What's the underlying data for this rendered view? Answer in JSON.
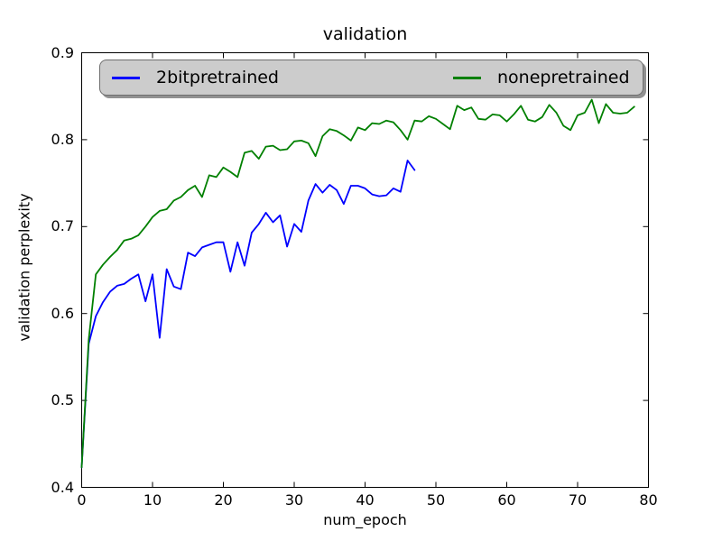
{
  "title": "validation",
  "xlabel": "num_epoch",
  "ylabel": "validation perplexity",
  "legend": {
    "position": "upper center",
    "columns": 2,
    "entries": [
      {
        "label": "2bitpretrained",
        "color": "#0000ff"
      },
      {
        "label": "nonepretrained",
        "color": "#008000"
      }
    ]
  },
  "axes": {
    "xticks": [
      "0",
      "10",
      "20",
      "30",
      "40",
      "50",
      "60",
      "70",
      "80"
    ],
    "yticks": [
      "0.4",
      "0.5",
      "0.6",
      "0.7",
      "0.8",
      "0.9"
    ]
  },
  "colors": {
    "background": "#ffffff",
    "axes_frame": "#000000",
    "legend_fill": "#cccccc",
    "legend_shadow": "#919191",
    "series_blue": "#0000ff",
    "series_green": "#008000"
  },
  "chart_data": {
    "type": "line",
    "title": "validation",
    "xlabel": "num_epoch",
    "ylabel": "validation perplexity",
    "xlim": [
      0,
      80
    ],
    "ylim": [
      0.4,
      0.9
    ],
    "grid": false,
    "legend_position": "upper center, 2 columns, gray box with shadow",
    "series": [
      {
        "name": "2bitpretrained",
        "color": "#0000ff",
        "x": [
          0,
          1,
          2,
          3,
          4,
          5,
          6,
          7,
          8,
          9,
          10,
          11,
          12,
          13,
          14,
          15,
          16,
          17,
          18,
          19,
          20,
          21,
          22,
          23,
          24,
          25,
          26,
          27,
          28,
          29,
          30,
          31,
          32,
          33,
          34,
          35,
          36,
          37,
          38,
          39,
          40,
          41,
          42,
          43,
          44,
          45,
          46,
          47
        ],
        "y": [
          0.423,
          0.565,
          0.597,
          0.613,
          0.625,
          0.632,
          0.634,
          0.64,
          0.645,
          0.614,
          0.645,
          0.572,
          0.651,
          0.631,
          0.628,
          0.67,
          0.666,
          0.676,
          0.679,
          0.682,
          0.682,
          0.648,
          0.682,
          0.655,
          0.693,
          0.703,
          0.716,
          0.705,
          0.713,
          0.677,
          0.703,
          0.694,
          0.73,
          0.749,
          0.739,
          0.748,
          0.742,
          0.726,
          0.747,
          0.747,
          0.744,
          0.737,
          0.735,
          0.736,
          0.744,
          0.74,
          0.776,
          0.765
        ]
      },
      {
        "name": "nonepretrained",
        "color": "#008000",
        "x": [
          0,
          1,
          2,
          3,
          4,
          5,
          6,
          7,
          8,
          9,
          10,
          11,
          12,
          13,
          14,
          15,
          16,
          17,
          18,
          19,
          20,
          21,
          22,
          23,
          24,
          25,
          26,
          27,
          28,
          29,
          30,
          31,
          32,
          33,
          34,
          35,
          36,
          37,
          38,
          39,
          40,
          41,
          42,
          43,
          44,
          45,
          46,
          47,
          48,
          49,
          50,
          51,
          52,
          53,
          54,
          55,
          56,
          57,
          58,
          59,
          60,
          61,
          62,
          63,
          64,
          65,
          66,
          67,
          68,
          69,
          70,
          71,
          72,
          73,
          74,
          75,
          76,
          77,
          78
        ],
        "y": [
          0.423,
          0.57,
          0.645,
          0.656,
          0.665,
          0.673,
          0.684,
          0.686,
          0.69,
          0.7,
          0.711,
          0.718,
          0.72,
          0.73,
          0.734,
          0.742,
          0.747,
          0.734,
          0.759,
          0.757,
          0.768,
          0.763,
          0.757,
          0.785,
          0.787,
          0.778,
          0.792,
          0.793,
          0.788,
          0.789,
          0.798,
          0.799,
          0.796,
          0.781,
          0.804,
          0.812,
          0.81,
          0.805,
          0.799,
          0.814,
          0.811,
          0.819,
          0.818,
          0.822,
          0.82,
          0.811,
          0.8,
          0.822,
          0.821,
          0.827,
          0.824,
          0.818,
          0.812,
          0.839,
          0.834,
          0.837,
          0.824,
          0.823,
          0.829,
          0.828,
          0.821,
          0.829,
          0.839,
          0.823,
          0.821,
          0.826,
          0.84,
          0.831,
          0.816,
          0.811,
          0.828,
          0.831,
          0.846,
          0.819,
          0.841,
          0.831,
          0.83,
          0.831,
          0.838
        ]
      }
    ]
  }
}
